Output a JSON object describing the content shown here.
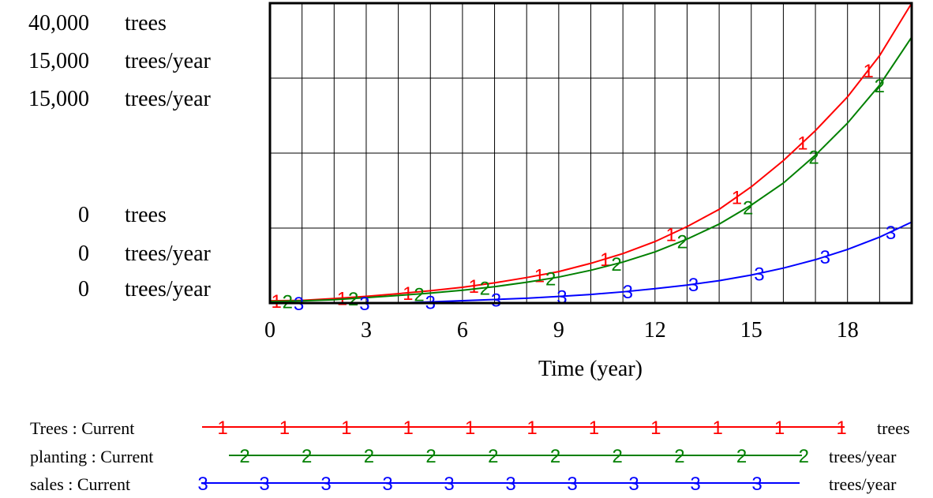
{
  "chart_data": {
    "type": "line",
    "title": "",
    "xlabel": "Time (year)",
    "xlim": [
      0,
      20
    ],
    "x_ticks": [
      "0",
      "3",
      "6",
      "9",
      "12",
      "15",
      "18"
    ],
    "x_tick_values": [
      0,
      3,
      6,
      9,
      12,
      15,
      18
    ],
    "grid": true,
    "axes": [
      {
        "max_label": "40,000",
        "min_label": "0",
        "unit": "trees",
        "max": 40000,
        "min": 0
      },
      {
        "max_label": "15,000",
        "min_label": "0",
        "unit": "trees/year",
        "max": 15000,
        "min": 0
      },
      {
        "max_label": "15,000",
        "min_label": "0",
        "unit": "trees/year",
        "max": 15000,
        "min": 0
      }
    ],
    "legend_position": "bottom",
    "series": [
      {
        "name": "Trees : Current",
        "marker": "1",
        "color": "#ff0000",
        "unit": "trees",
        "axis": 0,
        "x": [
          0,
          1,
          2,
          3,
          4,
          5,
          6,
          7,
          8,
          9,
          10,
          11,
          12,
          13,
          14,
          15,
          16,
          17,
          18,
          19,
          20
        ],
        "values": [
          300,
          360,
          600,
          900,
          1250,
          1650,
          2100,
          2700,
          3400,
          4200,
          5300,
          6600,
          8200,
          10200,
          12500,
          15500,
          19000,
          23000,
          27500,
          33000,
          40000
        ]
      },
      {
        "name": "planting : Current",
        "marker": "2",
        "color": "#008000",
        "unit": "trees/year",
        "axis": 1,
        "x": [
          0,
          1,
          2,
          3,
          4,
          5,
          6,
          7,
          8,
          9,
          10,
          11,
          12,
          13,
          14,
          15,
          16,
          17,
          18,
          19,
          20
        ],
        "values": [
          80,
          110,
          170,
          270,
          380,
          500,
          640,
          820,
          1040,
          1300,
          1640,
          2050,
          2560,
          3200,
          3950,
          4900,
          6000,
          7400,
          9000,
          10900,
          13300
        ]
      },
      {
        "name": "sales : Current",
        "marker": "3",
        "color": "#0000ff",
        "unit": "trees/year",
        "axis": 2,
        "x": [
          0,
          1,
          2,
          3,
          4,
          5,
          6,
          7,
          8,
          9,
          10,
          11,
          12,
          13,
          14,
          15,
          16,
          17,
          18,
          19,
          20
        ],
        "values": [
          0,
          0,
          0,
          0,
          0,
          60,
          120,
          180,
          240,
          330,
          430,
          560,
          720,
          900,
          1120,
          1400,
          1750,
          2170,
          2680,
          3300,
          4050
        ]
      }
    ]
  }
}
